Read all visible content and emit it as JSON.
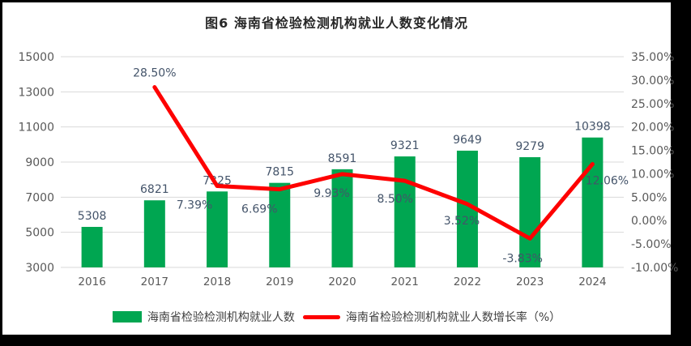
{
  "title": "图6  海南省检验检测机构就业人数变化情况",
  "colors": {
    "bar": "#00A651",
    "line": "#FE0000",
    "grid": "#D9D9D9",
    "axis_text": "#595959",
    "data_label_text": "#44546A",
    "title_text": "#262626",
    "frame": "#000000",
    "background": "#FFFFFF"
  },
  "chart_data": {
    "type": "bar+line combo",
    "title": "图6  海南省检验检测机构就业人数变化情况",
    "categories": [
      "2016",
      "2017",
      "2018",
      "2019",
      "2020",
      "2021",
      "2022",
      "2023",
      "2024"
    ],
    "series": [
      {
        "name": "海南省检验检测机构就业人数",
        "type": "bar",
        "axis": "left",
        "color": "#00A651",
        "values": [
          5308,
          6821,
          7325,
          7815,
          8591,
          9321,
          9649,
          9279,
          10398
        ],
        "labels": [
          "5308",
          "6821",
          "7325",
          "7815",
          "8591",
          "9321",
          "9649",
          "9279",
          "10398"
        ]
      },
      {
        "name": "海南省检验检测机构就业人数增长率（%）",
        "type": "line",
        "axis": "right",
        "color": "#FE0000",
        "values": [
          null,
          28.5,
          7.39,
          6.69,
          9.93,
          8.5,
          3.52,
          -3.83,
          12.06
        ],
        "labels": [
          null,
          "28.50%",
          "7.39%",
          "6.69%",
          "9.93%",
          "8.50%",
          "3.52%",
          "-3.83%",
          "12.06%"
        ],
        "label_offsets": [
          null,
          [
            0,
            -13
          ],
          [
            -28,
            28
          ],
          [
            -25,
            29
          ],
          [
            -13,
            28
          ],
          [
            -12,
            27
          ],
          [
            -7,
            25
          ],
          [
            -9,
            29
          ],
          [
            18,
            25
          ]
        ]
      }
    ],
    "left_axis": {
      "min": 3000,
      "max": 15000,
      "step": 2000,
      "ticks": [
        "3000",
        "5000",
        "7000",
        "9000",
        "11000",
        "13000",
        "15000"
      ]
    },
    "right_axis": {
      "min": -10,
      "max": 35,
      "step": 5,
      "ticks": [
        "-10.00%",
        "-5.00%",
        "0.00%",
        "5.00%",
        "10.00%",
        "15.00%",
        "20.00%",
        "25.00%",
        "30.00%",
        "35.00%"
      ]
    },
    "grid": true,
    "legend_position": "bottom"
  },
  "legend": {
    "items": [
      {
        "label": "海南省检验检测机构就业人数",
        "swatch": "bar"
      },
      {
        "label": "海南省检验检测机构就业人数增长率（%）",
        "swatch": "line"
      }
    ]
  }
}
